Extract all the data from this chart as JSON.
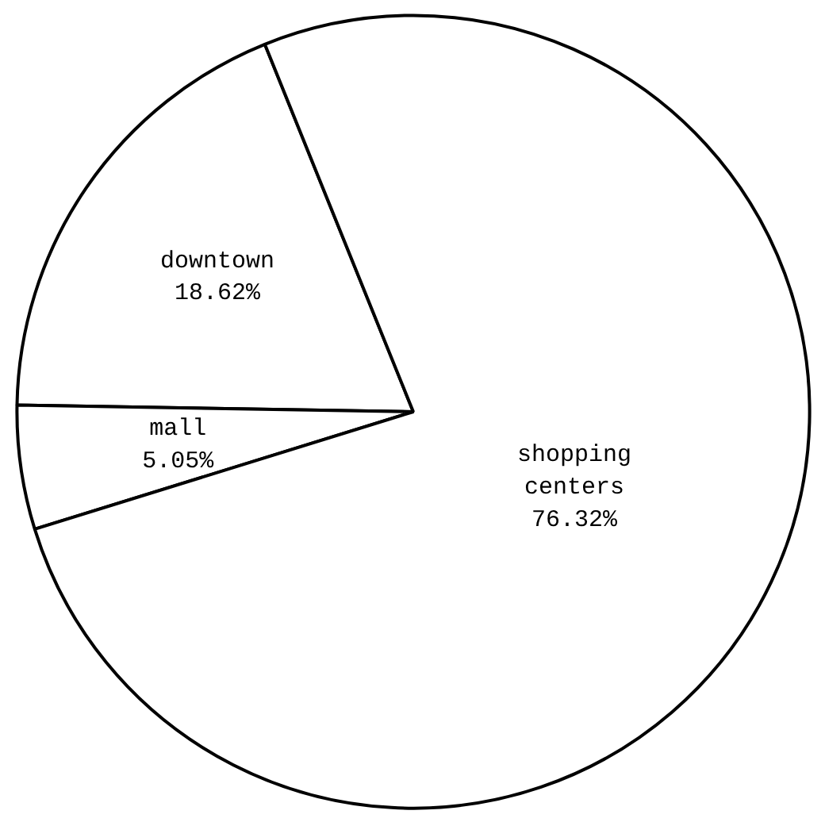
{
  "chart_data": {
    "type": "pie",
    "categories": [
      "downtown",
      "mall",
      "shopping centers"
    ],
    "values": [
      18.62,
      5.05,
      76.32
    ],
    "colors": [
      "#ffffff",
      "#ffffff",
      "#ffffff"
    ],
    "value_labels": [
      "18.62%",
      "5.05%",
      "76.32%"
    ]
  }
}
